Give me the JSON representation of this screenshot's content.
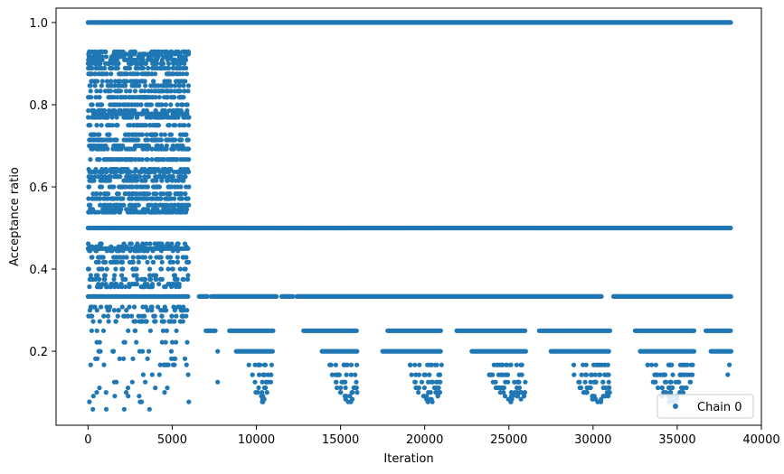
{
  "chart_data": {
    "type": "scatter",
    "title": "",
    "xlabel": "Iteration",
    "ylabel": "Acceptance ratio",
    "xlim": [
      -1900,
      40000
    ],
    "ylim": [
      0.02,
      1.035
    ],
    "x_ticks": [
      0,
      5000,
      10000,
      15000,
      20000,
      25000,
      30000,
      35000,
      40000
    ],
    "x_tick_labels": [
      "0",
      "5000",
      "10000",
      "15000",
      "20000",
      "25000",
      "30000",
      "35000",
      "40000"
    ],
    "y_ticks": [
      0.2,
      0.4,
      0.6,
      0.8,
      1.0
    ],
    "y_tick_labels": [
      "0.2",
      "0.4",
      "0.6",
      "0.8",
      "1.0"
    ],
    "grid": false,
    "legend_position": "bottom-right",
    "color": "#1f77b4",
    "series": [
      {
        "name": "Chain 0",
        "segments": [
          {
            "x_start": 0,
            "x_end": 6000,
            "y": 1.0,
            "density": "dense"
          },
          {
            "x_start": 0,
            "x_end": 6000,
            "y_range": [
              0.52,
              0.93
            ],
            "density": "dense",
            "pattern": "scattered-band"
          },
          {
            "x_start": 0,
            "x_end": 6000,
            "y": 0.5,
            "density": "dense"
          },
          {
            "x_start": 0,
            "x_end": 6000,
            "y_range": [
              0.25,
              0.48
            ],
            "density": "medium",
            "pattern": "scattered-band"
          },
          {
            "x_start": 0,
            "x_end": 6000,
            "y_range": [
              0.05,
              0.25
            ],
            "density": "sparse",
            "pattern": "scattered-band"
          },
          {
            "x_start": 6000,
            "x_end": 38200,
            "y": 1.0,
            "density": "dense"
          },
          {
            "x_start": 6000,
            "x_end": 38200,
            "y": 0.5,
            "density": "dense"
          },
          {
            "x_start": 6500,
            "x_end": 38200,
            "y": 0.333,
            "density": "dense-with-gaps"
          },
          {
            "x_start": 7000,
            "x_end": 38200,
            "y": 0.25,
            "density": "clusters"
          },
          {
            "x_start": 9500,
            "x_end": 36000,
            "y_range": [
              0.08,
              0.2
            ],
            "density": "sparse",
            "pattern": "v-shaped clusters near x≈10500, 15800, 20500, 25800, 30500, 35000"
          }
        ]
      }
    ]
  }
}
